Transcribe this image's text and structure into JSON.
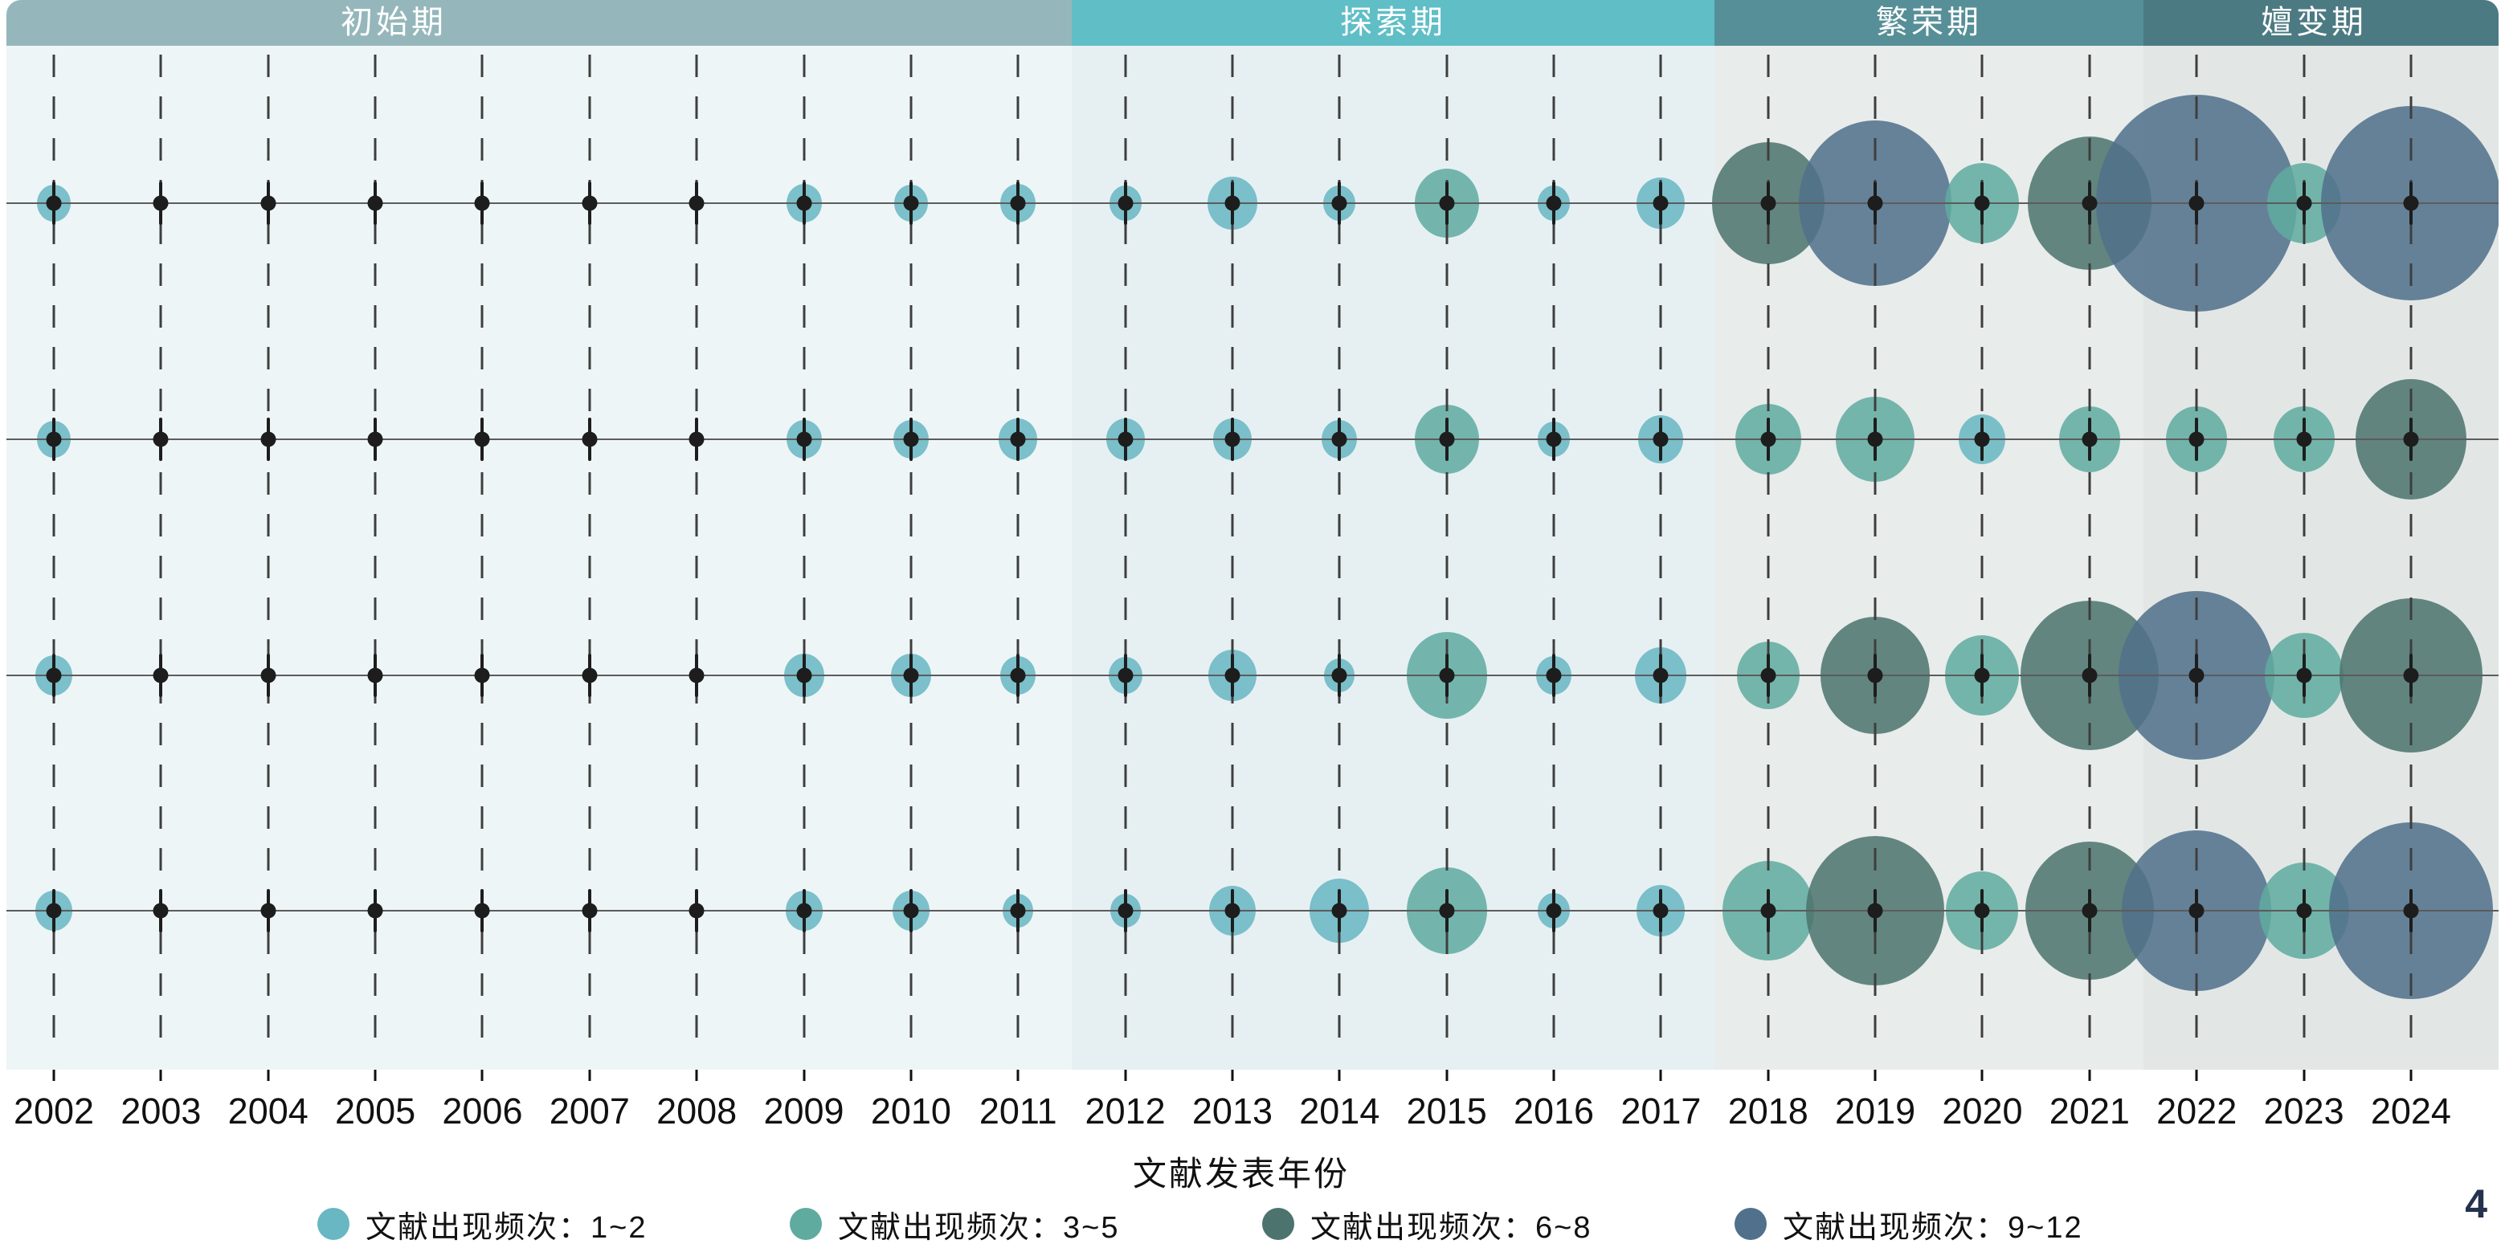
{
  "page": {
    "page_number": "4"
  },
  "axis": {
    "title": "文献发表年份",
    "years": [
      2002,
      2003,
      2004,
      2005,
      2006,
      2007,
      2008,
      2009,
      2010,
      2011,
      2012,
      2013,
      2014,
      2015,
      2016,
      2017,
      2018,
      2019,
      2020,
      2021,
      2022,
      2023,
      2024
    ]
  },
  "phases": [
    {
      "label": "初始期",
      "start_year": 2002,
      "end_year": 2011,
      "header_color": "#95b7bb",
      "bg_color": "#eef5f7"
    },
    {
      "label": "探索期",
      "start_year": 2012,
      "end_year": 2017,
      "header_color": "#5fbec6",
      "bg_color": "#e6f0f3"
    },
    {
      "label": "繁荣期",
      "start_year": 2018,
      "end_year": 2021,
      "header_color": "#568f97",
      "bg_color": "#e8eceb"
    },
    {
      "label": "嬗变期",
      "start_year": 2022,
      "end_year": 2024,
      "header_color": "#4b7a82",
      "bg_color": "#e2e7e6"
    }
  ],
  "legend": {
    "items": [
      {
        "freq": "1~2",
        "label": "文献出现频次：1~2",
        "color": "#68b7c3"
      },
      {
        "freq": "3~5",
        "label": "文献出现频次：3~5",
        "color": "#5fab9f"
      },
      {
        "freq": "6~8",
        "label": "文献出现频次：6~8",
        "color": "#4c736e"
      },
      {
        "freq": "9~12",
        "label": "文献出现频次：9~12",
        "color": "#50708b"
      }
    ]
  },
  "chart_data": {
    "type": "bubble",
    "description": "Timeline bubble chart: 4 unlabeled keyword rows vs publication year (2002-2024); bubble color bins literature occurrence frequency, bubble radius scales with frequency",
    "x_range": [
      2002,
      2024
    ],
    "rows": [
      1,
      2,
      3,
      4
    ],
    "freq_bins": [
      "1~2",
      "3~5",
      "6~8",
      "9~12"
    ],
    "bubbles": [
      {
        "row": 1,
        "year": 2002,
        "freq": "1~2",
        "r": 21
      },
      {
        "row": 1,
        "year": 2009,
        "freq": "1~2",
        "r": 22
      },
      {
        "row": 1,
        "year": 2010,
        "freq": "1~2",
        "r": 21
      },
      {
        "row": 1,
        "year": 2011,
        "freq": "1~2",
        "r": 22
      },
      {
        "row": 1,
        "year": 2012,
        "freq": "1~2",
        "r": 20
      },
      {
        "row": 1,
        "year": 2013,
        "freq": "1~2",
        "r": 31
      },
      {
        "row": 1,
        "year": 2014,
        "freq": "1~2",
        "r": 20
      },
      {
        "row": 1,
        "year": 2015,
        "freq": "3~5",
        "r": 40
      },
      {
        "row": 1,
        "year": 2016,
        "freq": "1~2",
        "r": 20
      },
      {
        "row": 1,
        "year": 2017,
        "freq": "1~2",
        "r": 30
      },
      {
        "row": 1,
        "year": 2018,
        "freq": "6~8",
        "r": 70
      },
      {
        "row": 1,
        "year": 2019,
        "freq": "9~12",
        "r": 95
      },
      {
        "row": 1,
        "year": 2020,
        "freq": "3~5",
        "r": 46
      },
      {
        "row": 1,
        "year": 2021,
        "freq": "6~8",
        "r": 77
      },
      {
        "row": 1,
        "year": 2022,
        "freq": "9~12",
        "r": 125
      },
      {
        "row": 1,
        "year": 2023,
        "freq": "3~5",
        "r": 46
      },
      {
        "row": 1,
        "year": 2024,
        "freq": "9~12",
        "r": 112
      },
      {
        "row": 2,
        "year": 2002,
        "freq": "1~2",
        "r": 21
      },
      {
        "row": 2,
        "year": 2009,
        "freq": "1~2",
        "r": 22
      },
      {
        "row": 2,
        "year": 2010,
        "freq": "1~2",
        "r": 22
      },
      {
        "row": 2,
        "year": 2011,
        "freq": "1~2",
        "r": 24
      },
      {
        "row": 2,
        "year": 2012,
        "freq": "1~2",
        "r": 24
      },
      {
        "row": 2,
        "year": 2013,
        "freq": "1~2",
        "r": 24
      },
      {
        "row": 2,
        "year": 2014,
        "freq": "1~2",
        "r": 22
      },
      {
        "row": 2,
        "year": 2015,
        "freq": "3~5",
        "r": 40
      },
      {
        "row": 2,
        "year": 2016,
        "freq": "1~2",
        "r": 20
      },
      {
        "row": 2,
        "year": 2017,
        "freq": "1~2",
        "r": 28
      },
      {
        "row": 2,
        "year": 2018,
        "freq": "3~5",
        "r": 41
      },
      {
        "row": 2,
        "year": 2019,
        "freq": "3~5",
        "r": 49
      },
      {
        "row": 2,
        "year": 2020,
        "freq": "1~2",
        "r": 29
      },
      {
        "row": 2,
        "year": 2021,
        "freq": "3~5",
        "r": 38
      },
      {
        "row": 2,
        "year": 2022,
        "freq": "3~5",
        "r": 38
      },
      {
        "row": 2,
        "year": 2023,
        "freq": "3~5",
        "r": 38
      },
      {
        "row": 2,
        "year": 2024,
        "freq": "6~8",
        "r": 69
      },
      {
        "row": 3,
        "year": 2002,
        "freq": "1~2",
        "r": 23
      },
      {
        "row": 3,
        "year": 2009,
        "freq": "1~2",
        "r": 25
      },
      {
        "row": 3,
        "year": 2010,
        "freq": "1~2",
        "r": 25
      },
      {
        "row": 3,
        "year": 2011,
        "freq": "1~2",
        "r": 22
      },
      {
        "row": 3,
        "year": 2012,
        "freq": "1~2",
        "r": 21
      },
      {
        "row": 3,
        "year": 2013,
        "freq": "1~2",
        "r": 30
      },
      {
        "row": 3,
        "year": 2014,
        "freq": "1~2",
        "r": 19
      },
      {
        "row": 3,
        "year": 2015,
        "freq": "3~5",
        "r": 50
      },
      {
        "row": 3,
        "year": 2016,
        "freq": "1~2",
        "r": 22
      },
      {
        "row": 3,
        "year": 2017,
        "freq": "1~2",
        "r": 32
      },
      {
        "row": 3,
        "year": 2018,
        "freq": "3~5",
        "r": 39
      },
      {
        "row": 3,
        "year": 2019,
        "freq": "6~8",
        "r": 68
      },
      {
        "row": 3,
        "year": 2020,
        "freq": "3~5",
        "r": 46
      },
      {
        "row": 3,
        "year": 2021,
        "freq": "6~8",
        "r": 86
      },
      {
        "row": 3,
        "year": 2022,
        "freq": "9~12",
        "r": 97
      },
      {
        "row": 3,
        "year": 2023,
        "freq": "3~5",
        "r": 49
      },
      {
        "row": 3,
        "year": 2024,
        "freq": "6~8",
        "r": 89
      },
      {
        "row": 4,
        "year": 2002,
        "freq": "1~2",
        "r": 23
      },
      {
        "row": 4,
        "year": 2009,
        "freq": "1~2",
        "r": 23
      },
      {
        "row": 4,
        "year": 2010,
        "freq": "1~2",
        "r": 23
      },
      {
        "row": 4,
        "year": 2011,
        "freq": "1~2",
        "r": 19
      },
      {
        "row": 4,
        "year": 2012,
        "freq": "1~2",
        "r": 19
      },
      {
        "row": 4,
        "year": 2013,
        "freq": "1~2",
        "r": 29
      },
      {
        "row": 4,
        "year": 2014,
        "freq": "1~2",
        "r": 37
      },
      {
        "row": 4,
        "year": 2015,
        "freq": "3~5",
        "r": 50
      },
      {
        "row": 4,
        "year": 2016,
        "freq": "1~2",
        "r": 20
      },
      {
        "row": 4,
        "year": 2017,
        "freq": "1~2",
        "r": 30
      },
      {
        "row": 4,
        "year": 2018,
        "freq": "3~5",
        "r": 57
      },
      {
        "row": 4,
        "year": 2019,
        "freq": "6~8",
        "r": 86
      },
      {
        "row": 4,
        "year": 2020,
        "freq": "3~5",
        "r": 45
      },
      {
        "row": 4,
        "year": 2021,
        "freq": "6~8",
        "r": 80
      },
      {
        "row": 4,
        "year": 2022,
        "freq": "9~12",
        "r": 93
      },
      {
        "row": 4,
        "year": 2023,
        "freq": "3~5",
        "r": 56
      },
      {
        "row": 4,
        "year": 2024,
        "freq": "9~12",
        "r": 102
      }
    ]
  }
}
